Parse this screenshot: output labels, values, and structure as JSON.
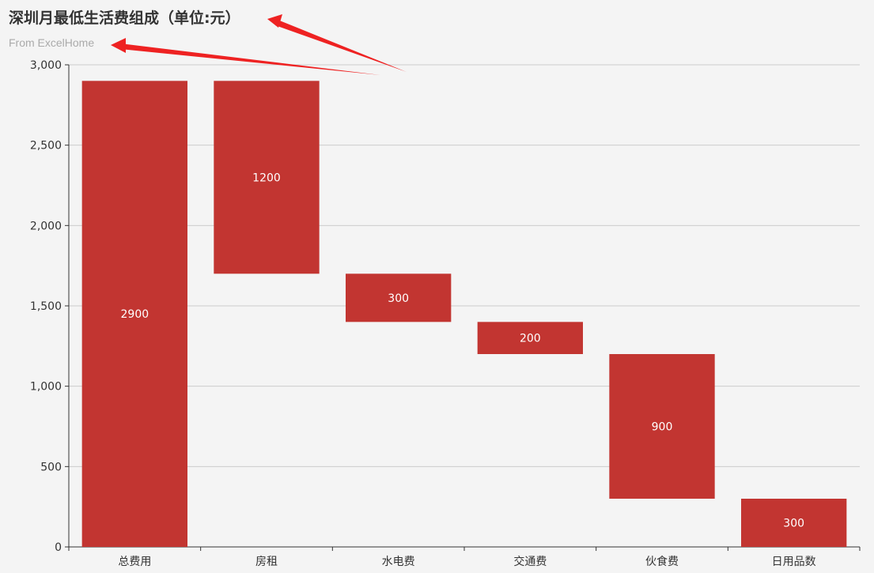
{
  "chart_data": {
    "type": "bar",
    "subtype": "waterfall",
    "title": "深圳月最低生活费组成（单位:元）",
    "subtitle": "From ExcelHome",
    "xlabel": "",
    "ylabel": "",
    "categories": [
      "总费用",
      "房租",
      "水电费",
      "交通费",
      "伙食费",
      "日用品数"
    ],
    "series": [
      {
        "values": [
          2900,
          1200,
          300,
          200,
          900,
          300
        ],
        "base": [
          0,
          1700,
          1400,
          1200,
          300,
          0
        ]
      }
    ],
    "data_labels": [
      "2900",
      "1200",
      "300",
      "200",
      "900",
      "300"
    ],
    "ylim": [
      0,
      3000
    ],
    "yticks": [
      0,
      500,
      1000,
      1500,
      2000,
      2500,
      3000
    ],
    "ytick_labels": [
      "0",
      "500",
      "1,000",
      "1,500",
      "2,000",
      "2,500",
      "3,000"
    ],
    "grid": true,
    "legend": "none",
    "colors": {
      "bar": "#c23531",
      "grid": "#cccccc",
      "axis": "#333333",
      "label": "#ffffff",
      "annotation_arrow": "#ee2222"
    }
  }
}
